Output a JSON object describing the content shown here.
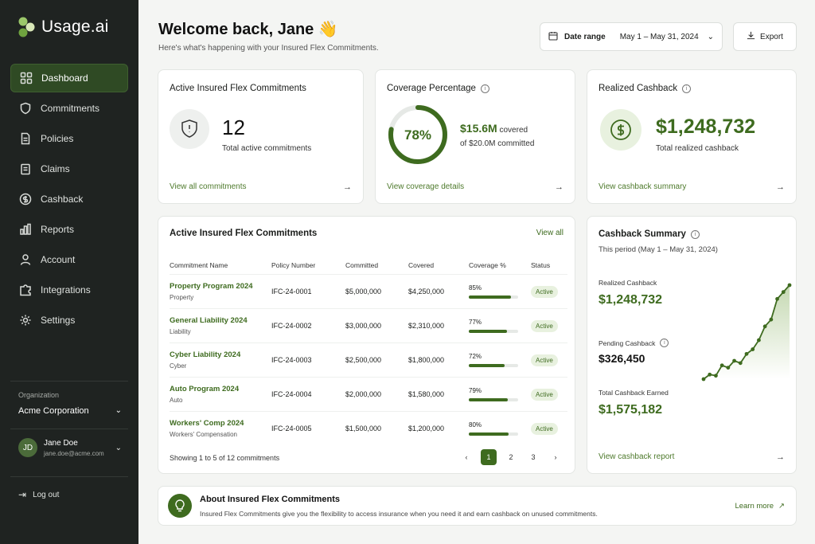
{
  "app": {
    "name": "Usage.ai"
  },
  "sidebar": {
    "items": [
      {
        "label": "Dashboard",
        "icon": "grid-icon"
      },
      {
        "label": "Commitments",
        "icon": "shield-icon"
      },
      {
        "label": "Policies",
        "icon": "document-icon"
      },
      {
        "label": "Claims",
        "icon": "clipboard-icon"
      },
      {
        "label": "Cashback",
        "icon": "dollar-circle-icon"
      },
      {
        "label": "Reports",
        "icon": "bar-chart-icon"
      },
      {
        "label": "Account",
        "icon": "user-icon"
      },
      {
        "label": "Integrations",
        "icon": "puzzle-icon"
      },
      {
        "label": "Settings",
        "icon": "gear-icon"
      }
    ],
    "org_label": "Organization",
    "org_name": "Acme Corporation",
    "user_initials": "JD",
    "user_name": "Jane Doe",
    "user_email": "jane.doe@acme.com",
    "logout": "Log out"
  },
  "header": {
    "welcome": "Welcome back, Jane 👋",
    "subtitle": "Here's what's happening with your Insured Flex Commitments.",
    "date_label": "Date range",
    "date_value": "May 1 – May 31, 2024",
    "export": "Export"
  },
  "cards": {
    "active": {
      "title": "Active Insured Flex Commitments",
      "value": "12",
      "sub": "Total active commitments",
      "link": "View all commitments"
    },
    "coverage": {
      "title": "Coverage Percentage",
      "percent": "78%",
      "percent_value": 0.78,
      "covered_amount": "$15.6M",
      "covered_word": "covered",
      "committed": "of $20.0M committed",
      "link": "View coverage details"
    },
    "cashback": {
      "title": "Realized Cashback",
      "value": "$1,248,732",
      "sub": "Total realized cashback",
      "link": "View cashback summary"
    }
  },
  "table": {
    "title": "Active Insured Flex Commitments",
    "view_all": "View all",
    "headers": [
      "Commitment Name",
      "Policy Number",
      "Committed",
      "Covered",
      "Coverage %",
      "Status"
    ],
    "rows": [
      {
        "name": "Property Program 2024",
        "type": "Property",
        "policy": "IFC-24-0001",
        "committed": "$5,000,000",
        "covered": "$4,250,000",
        "pct": "85%",
        "pct_value": 0.85,
        "status": "Active"
      },
      {
        "name": "General Liability 2024",
        "type": "Liability",
        "policy": "IFC-24-0002",
        "committed": "$3,000,000",
        "covered": "$2,310,000",
        "pct": "77%",
        "pct_value": 0.77,
        "status": "Active"
      },
      {
        "name": "Cyber Liability 2024",
        "type": "Cyber",
        "policy": "IFC-24-0003",
        "committed": "$2,500,000",
        "covered": "$1,800,000",
        "pct": "72%",
        "pct_value": 0.72,
        "status": "Active"
      },
      {
        "name": "Auto Program 2024",
        "type": "Auto",
        "policy": "IFC-24-0004",
        "committed": "$2,000,000",
        "covered": "$1,580,000",
        "pct": "79%",
        "pct_value": 0.79,
        "status": "Active"
      },
      {
        "name": "Workers' Comp 2024",
        "type": "Workers' Compensation",
        "policy": "IFC-24-0005",
        "committed": "$1,500,000",
        "covered": "$1,200,000",
        "pct": "80%",
        "pct_value": 0.8,
        "status": "Active"
      }
    ],
    "showing": "Showing 1 to 5 of 12 commitments",
    "pages": [
      "1",
      "2",
      "3"
    ]
  },
  "summary": {
    "title": "Cashback Summary",
    "period": "This period (May 1 – May 31, 2024)",
    "realized_label": "Realized Cashback",
    "realized_value": "$1,248,732",
    "pending_label": "Pending Cashback",
    "pending_value": "$326,450",
    "total_label": "Total Cashback Earned",
    "total_value": "$1,575,182",
    "link": "View cashback report",
    "trend": [
      10,
      14,
      13,
      22,
      20,
      26,
      24,
      32,
      36,
      44,
      56,
      62,
      80,
      86,
      92
    ]
  },
  "about": {
    "title": "About Insured Flex Commitments",
    "text": "Insured Flex Commitments give you the flexibility to access insurance when you need it and earn cashback on unused commitments.",
    "learn_more": "Learn more"
  },
  "colors": {
    "accent": "#3e6b1f",
    "sidebar": "#1f2321"
  }
}
